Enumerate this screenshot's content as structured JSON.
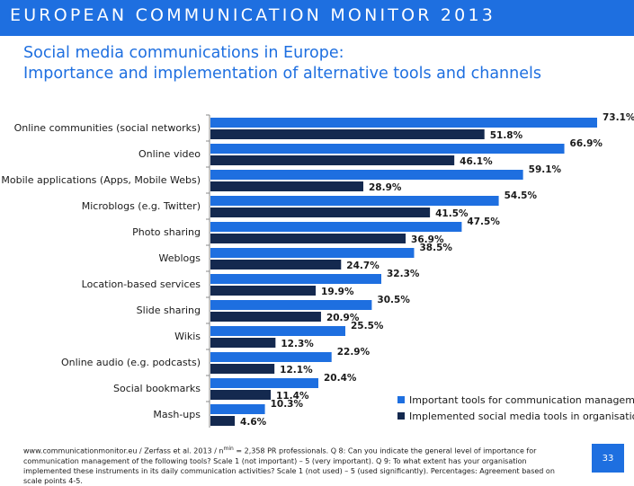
{
  "header": {
    "monitor_title": "EUROPEAN COMMUNICATION MONITOR 2013"
  },
  "slide": {
    "title_line1": "Social media communications in Europe:",
    "title_line2": "Importance and implementation of alternative tools and channels"
  },
  "colors": {
    "brand_blue": "#1E6FE0",
    "important": "#1E6FE0",
    "implemented": "#14294F"
  },
  "chart_data": {
    "type": "bar",
    "orientation": "horizontal",
    "categories": [
      "Online communities (social networks)",
      "Online video",
      "Mobile applications (Apps, Mobile Webs)",
      "Microblogs (e.g. Twitter)",
      "Photo sharing",
      "Weblogs",
      "Location-based services",
      "Slide sharing",
      "Wikis",
      "Online audio (e.g. podcasts)",
      "Social bookmarks",
      "Mash-ups"
    ],
    "series": [
      {
        "name": "Important tools for communication management",
        "values": [
          73.1,
          66.9,
          59.1,
          54.5,
          47.5,
          38.5,
          32.3,
          30.5,
          25.5,
          22.9,
          20.4,
          10.3
        ],
        "labels": [
          "73.1%",
          "66.9%",
          "59.1%",
          "54.5%",
          "47.5%",
          "38.5%",
          "32.3%",
          "30.5%",
          "25.5%",
          "22.9%",
          "20.4%",
          "10.3%"
        ]
      },
      {
        "name": "Implemented social media tools in organisations",
        "values": [
          51.8,
          46.1,
          28.9,
          41.5,
          36.9,
          24.7,
          19.9,
          20.9,
          12.3,
          12.1,
          11.4,
          4.6
        ],
        "labels": [
          "51.8%",
          "46.1%",
          "28.9%",
          "41.5%",
          "36.9%",
          "24.7%",
          "19.9%",
          "20.9%",
          "12.3%",
          "12.1%",
          "11.4%",
          "4.6%"
        ]
      }
    ],
    "xlim": [
      0,
      100
    ],
    "legend_position": "bottom-right",
    "grid": false
  },
  "legend": {
    "important": "Important tools for communication management",
    "implemented": "Implemented social media tools in organisations"
  },
  "footer": {
    "line1": "www.communicationmonitor.eu / Zerfass et al. 2013 / n",
    "superscript": "min",
    "line1_rest": " = 2,358 PR professionals. Q 8: Can you indicate the general level of importance for communication management of the following tools? Scale 1 (not important) – 5 (very important). Q 9: To what extent has your organisation implemented these instruments in its daily communication activities? Scale 1 (not used) – 5 (used significantly). Percentages: Agreement based on scale points 4-5.",
    "page_number": "33"
  }
}
